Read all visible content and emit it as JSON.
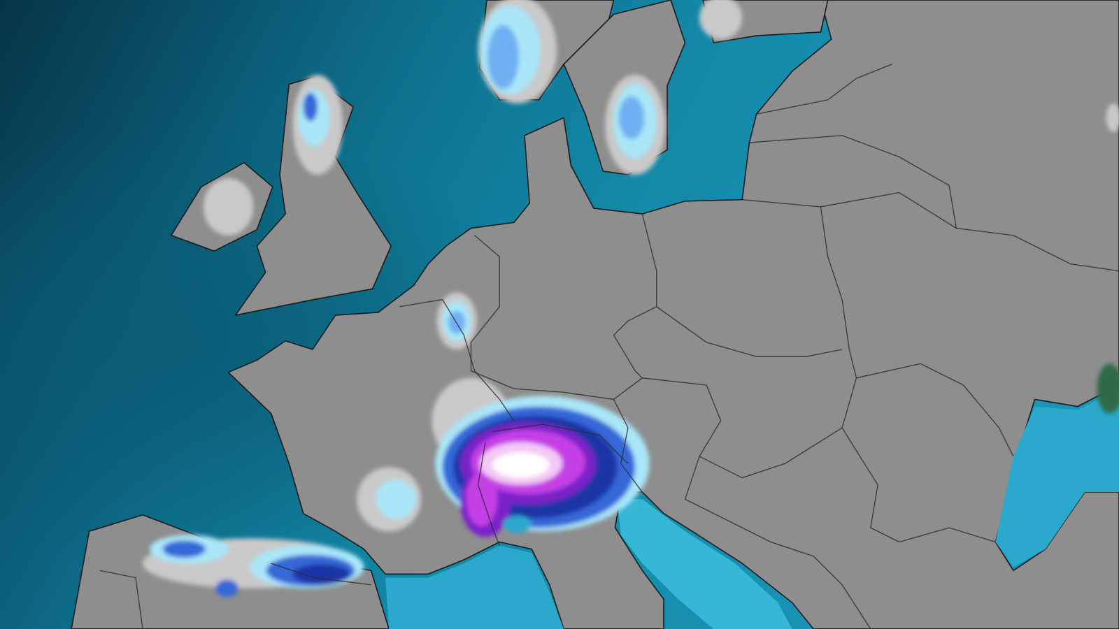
{
  "map": {
    "region": "Europe",
    "layer": "snowfall",
    "colors": {
      "ocean_deep": "#07394a",
      "ocean": "#1489a8",
      "shallow_sea": "#2fb4d4",
      "land": "#8e8e8e",
      "borders": "#222222"
    },
    "snow_palette": [
      "#c9c9c9",
      "#a9e6f8",
      "#6fb0f2",
      "#3468d8",
      "#1a36a6",
      "#7a24c8",
      "#c440e6",
      "#f3c8f5",
      "#ffffff"
    ]
  }
}
